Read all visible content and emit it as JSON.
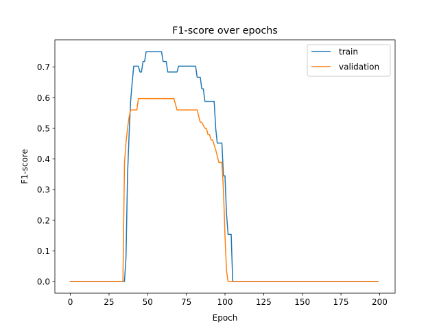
{
  "chart_data": {
    "type": "line",
    "title": "F1-score over epochs",
    "xlabel": "Epoch",
    "ylabel": "F1-score",
    "xlim": [
      -10,
      210
    ],
    "ylim": [
      -0.038,
      0.789
    ],
    "grid": false,
    "legend_position": "top-right",
    "x_ticks": [
      {
        "value": 0,
        "label": "0"
      },
      {
        "value": 25,
        "label": "25"
      },
      {
        "value": 50,
        "label": "50"
      },
      {
        "value": 75,
        "label": "75"
      },
      {
        "value": 100,
        "label": "100"
      },
      {
        "value": 125,
        "label": "125"
      },
      {
        "value": 150,
        "label": "150"
      },
      {
        "value": 175,
        "label": "175"
      },
      {
        "value": 200,
        "label": "200"
      }
    ],
    "y_ticks": [
      {
        "value": 0.0,
        "label": "0.0"
      },
      {
        "value": 0.1,
        "label": "0.1"
      },
      {
        "value": 0.2,
        "label": "0.2"
      },
      {
        "value": 0.3,
        "label": "0.3"
      },
      {
        "value": 0.4,
        "label": "0.4"
      },
      {
        "value": 0.5,
        "label": "0.5"
      },
      {
        "value": 0.6,
        "label": "0.6"
      },
      {
        "value": 0.7,
        "label": "0.7"
      }
    ],
    "series": [
      {
        "name": "train",
        "color": "#1f77b4",
        "points": [
          [
            0,
            0.0
          ],
          [
            35,
            0.0
          ],
          [
            36,
            0.08
          ],
          [
            37,
            0.35
          ],
          [
            38,
            0.48
          ],
          [
            39,
            0.59
          ],
          [
            40,
            0.65
          ],
          [
            41,
            0.703
          ],
          [
            44,
            0.703
          ],
          [
            45,
            0.684
          ],
          [
            46,
            0.684
          ],
          [
            47,
            0.718
          ],
          [
            48,
            0.718
          ],
          [
            49,
            0.75
          ],
          [
            59,
            0.75
          ],
          [
            60,
            0.718
          ],
          [
            62,
            0.718
          ],
          [
            63,
            0.684
          ],
          [
            69,
            0.684
          ],
          [
            70,
            0.703
          ],
          [
            81,
            0.703
          ],
          [
            82,
            0.667
          ],
          [
            84,
            0.667
          ],
          [
            85,
            0.629
          ],
          [
            86,
            0.629
          ],
          [
            87,
            0.588
          ],
          [
            93,
            0.588
          ],
          [
            94,
            0.5
          ],
          [
            95,
            0.452
          ],
          [
            98,
            0.452
          ],
          [
            99,
            0.345
          ],
          [
            100,
            0.345
          ],
          [
            101,
            0.22
          ],
          [
            102,
            0.154
          ],
          [
            104,
            0.154
          ],
          [
            105,
            0.0
          ],
          [
            199,
            0.0
          ]
        ]
      },
      {
        "name": "validation",
        "color": "#ff7f0e",
        "points": [
          [
            0,
            0.0
          ],
          [
            34,
            0.0
          ],
          [
            35,
            0.385
          ],
          [
            36,
            0.455
          ],
          [
            37,
            0.5
          ],
          [
            38,
            0.537
          ],
          [
            39,
            0.56
          ],
          [
            43,
            0.56
          ],
          [
            44,
            0.597
          ],
          [
            67,
            0.597
          ],
          [
            69,
            0.56
          ],
          [
            82,
            0.56
          ],
          [
            84,
            0.52
          ],
          [
            85,
            0.52
          ],
          [
            87,
            0.5
          ],
          [
            88,
            0.5
          ],
          [
            89,
            0.48
          ],
          [
            90,
            0.48
          ],
          [
            91,
            0.462
          ],
          [
            92,
            0.462
          ],
          [
            94,
            0.43
          ],
          [
            96,
            0.389
          ],
          [
            98,
            0.389
          ],
          [
            99,
            0.3
          ],
          [
            100,
            0.15
          ],
          [
            101,
            0.035
          ],
          [
            102,
            0.0
          ],
          [
            199,
            0.0
          ]
        ]
      }
    ]
  }
}
